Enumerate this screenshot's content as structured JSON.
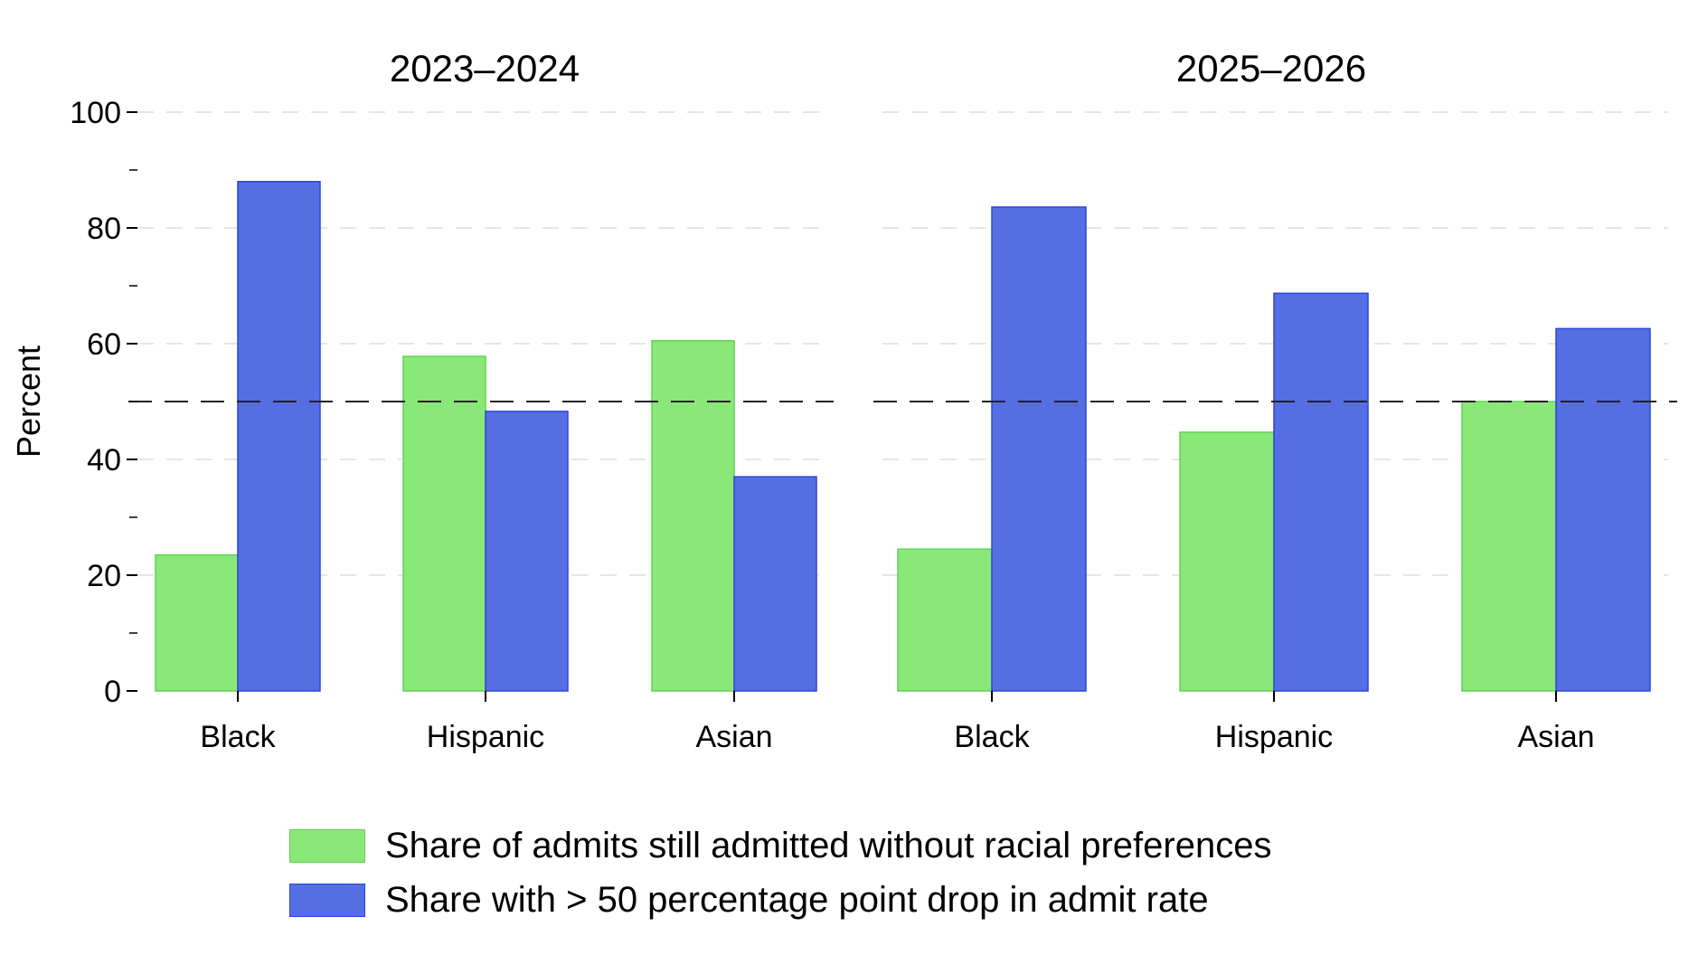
{
  "chart_data": {
    "type": "bar",
    "ylabel": "Percent",
    "ylim": [
      0,
      100
    ],
    "yticks": [
      "0",
      "20",
      "40",
      "60",
      "80",
      "100"
    ],
    "reference_line": 50,
    "grid": "horizontal dashed light gray",
    "legend_position": "bottom",
    "series": [
      {
        "name": "Share of admits still admitted without racial preferences",
        "color": "#8ae879",
        "edge": "#5fd350"
      },
      {
        "name": "Share with > 50 percentage point drop in admit rate",
        "color": "#556fe3",
        "edge": "#2b45d8"
      }
    ],
    "panels": [
      {
        "title": "2023–2024",
        "categories": [
          "Black",
          "Hispanic",
          "Asian"
        ],
        "values": [
          [
            23.5,
            57.8,
            60.5
          ],
          [
            88.0,
            48.3,
            37.0
          ]
        ]
      },
      {
        "title": "2025–2026",
        "categories": [
          "Black",
          "Hispanic",
          "Asian"
        ],
        "values": [
          [
            24.5,
            44.7,
            50.0
          ],
          [
            83.6,
            68.7,
            62.6
          ]
        ]
      }
    ]
  }
}
